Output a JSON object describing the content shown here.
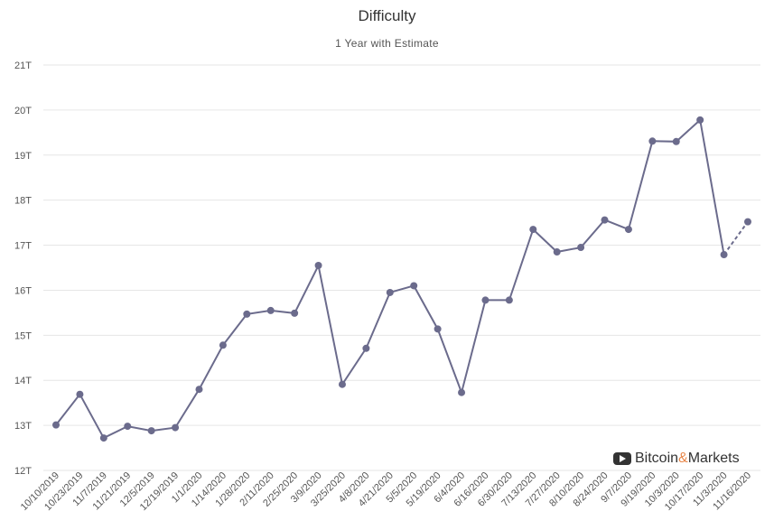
{
  "title": "Difficulty",
  "subtitle": "1 Year with Estimate",
  "watermark": {
    "brand_a": "Bitcoin",
    "amp": "&",
    "brand_b": "Markets",
    "icon": "play-icon"
  },
  "colors": {
    "series": "#6b6b8c",
    "grid": "#e6e6e6",
    "accent": "#e8874a"
  },
  "chart_data": {
    "type": "line",
    "title": "Difficulty",
    "subtitle": "1 Year with Estimate",
    "xlabel": "",
    "ylabel": "",
    "ylim": [
      12,
      21
    ],
    "y_ticks": [
      "12T",
      "13T",
      "14T",
      "15T",
      "16T",
      "17T",
      "18T",
      "19T",
      "20T",
      "21T"
    ],
    "grid": true,
    "legend": "none",
    "categories": [
      "10/10/2019",
      "10/23/2019",
      "11/7/2019",
      "11/21/2019",
      "12/5/2019",
      "12/19/2019",
      "1/1/2020",
      "1/14/2020",
      "1/28/2020",
      "2/11/2020",
      "2/25/2020",
      "3/9/2020",
      "3/25/2020",
      "4/8/2020",
      "4/21/2020",
      "5/5/2020",
      "5/19/2020",
      "6/4/2020",
      "6/16/2020",
      "6/30/2020",
      "7/13/2020",
      "7/27/2020",
      "8/10/2020",
      "8/24/2020",
      "9/7/2020",
      "9/19/2020",
      "10/3/2020",
      "10/17/2020",
      "11/3/2020",
      "11/16/2020"
    ],
    "series": [
      {
        "values": [
          13.01,
          13.69,
          12.72,
          12.98,
          12.88,
          12.95,
          13.8,
          14.78,
          15.47,
          15.55,
          15.49,
          16.55,
          13.91,
          14.71,
          15.95,
          16.1,
          15.14,
          13.73,
          15.78,
          15.78,
          17.35,
          16.85,
          16.95,
          17.56,
          17.35,
          19.31,
          19.3,
          19.78,
          16.79,
          17.52
        ]
      }
    ],
    "estimate_from_index": 28
  }
}
